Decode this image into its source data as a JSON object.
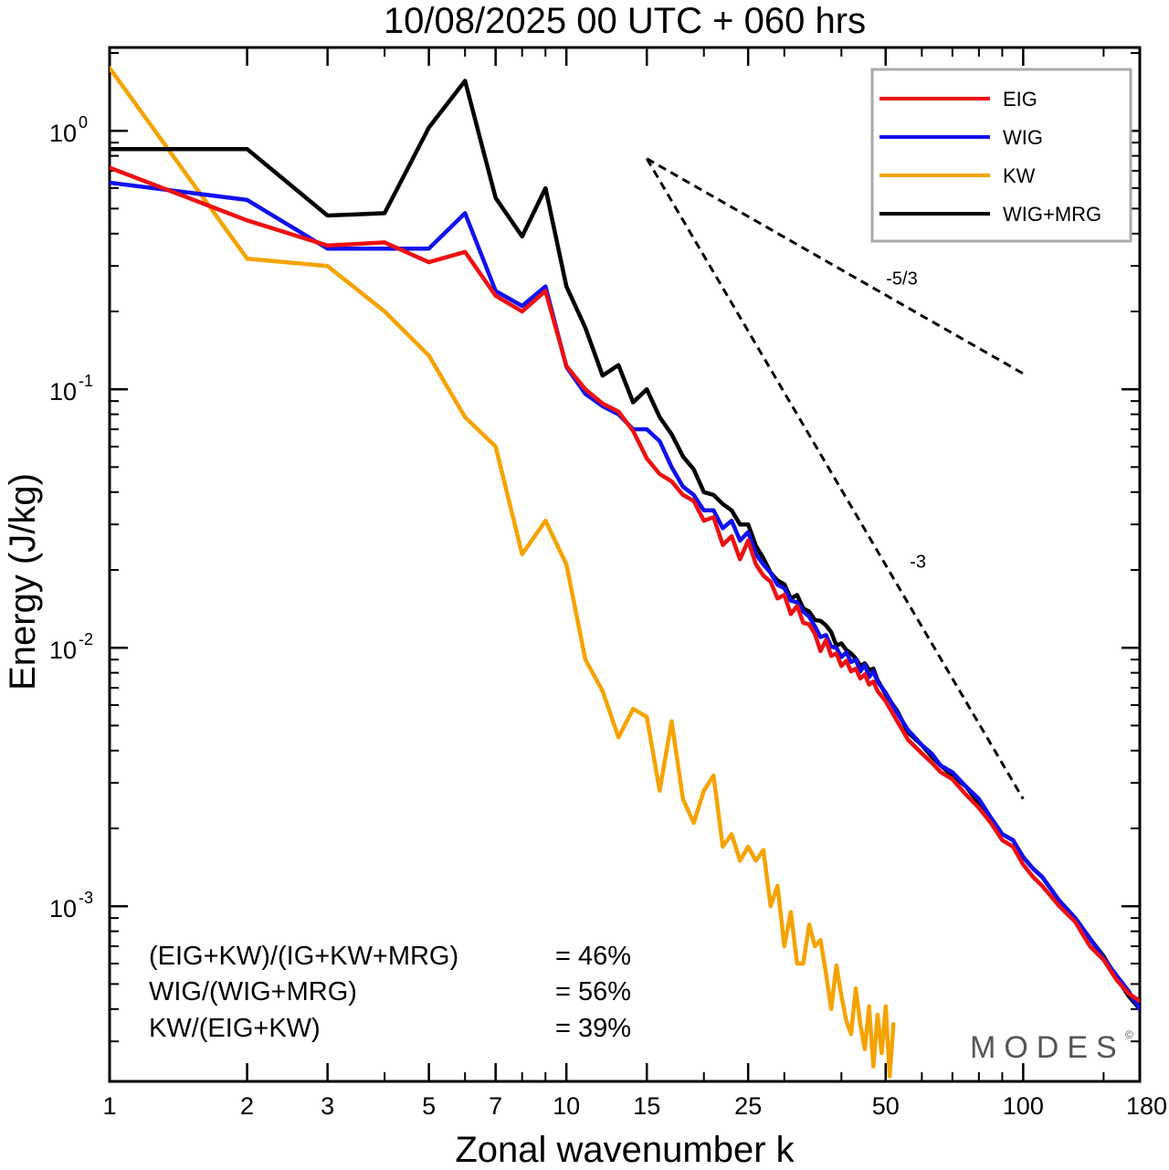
{
  "chart_data": {
    "type": "line",
    "title": "10/08/2025  00 UTC  + 060 hrs",
    "xlabel": "Zonal wavenumber k",
    "ylabel": "Energy (J/kg)",
    "xscale": "log",
    "yscale": "log",
    "xlim": [
      1,
      180
    ],
    "ylim": [
      0.00021,
      2.1
    ],
    "x_ticks": [
      {
        "value": 1,
        "label": "1"
      },
      {
        "value": 2,
        "label": "2"
      },
      {
        "value": 3,
        "label": "3"
      },
      {
        "value": 5,
        "label": "5"
      },
      {
        "value": 7,
        "label": "7"
      },
      {
        "value": 10,
        "label": "10"
      },
      {
        "value": 15,
        "label": "15"
      },
      {
        "value": 25,
        "label": "25"
      },
      {
        "value": 50,
        "label": "50"
      },
      {
        "value": 100,
        "label": "100"
      },
      {
        "value": 180,
        "label": "180"
      }
    ],
    "y_ticks": [
      {
        "value": 1,
        "base": "10",
        "exp": "0"
      },
      {
        "value": 0.1,
        "base": "10",
        "exp": "-1"
      },
      {
        "value": 0.01,
        "base": "10",
        "exp": "-2"
      },
      {
        "value": 0.001,
        "base": "10",
        "exp": "-3"
      }
    ],
    "legend_position": "top-right",
    "series": [
      {
        "name": "EIG",
        "color": "#ee1111",
        "x": [
          1,
          2,
          3,
          4,
          5,
          6,
          7,
          8,
          9,
          10,
          11,
          12,
          13,
          14,
          15,
          16,
          17,
          18,
          19,
          20,
          21,
          22,
          23,
          24,
          25,
          26,
          27,
          28,
          29,
          30,
          31,
          32,
          33,
          34,
          35,
          36,
          37,
          38,
          39,
          40,
          41,
          42,
          43,
          44,
          45,
          46,
          47,
          48,
          50,
          53,
          56,
          60,
          63,
          66,
          70,
          75,
          80,
          85,
          90,
          95,
          100,
          105,
          110,
          120,
          130,
          140,
          150,
          160,
          170,
          180
        ],
        "y": [
          0.72,
          0.45,
          0.36,
          0.37,
          0.31,
          0.34,
          0.23,
          0.2,
          0.24,
          0.123,
          0.1,
          0.088,
          0.082,
          0.069,
          0.054,
          0.047,
          0.044,
          0.039,
          0.037,
          0.031,
          0.032,
          0.025,
          0.027,
          0.022,
          0.026,
          0.021,
          0.019,
          0.018,
          0.0155,
          0.016,
          0.0135,
          0.0145,
          0.0125,
          0.0123,
          0.0113,
          0.0097,
          0.0107,
          0.0093,
          0.0095,
          0.0085,
          0.0089,
          0.0081,
          0.0083,
          0.0076,
          0.0079,
          0.0072,
          0.0074,
          0.0068,
          0.0062,
          0.0052,
          0.0044,
          0.0039,
          0.0036,
          0.0033,
          0.0031,
          0.0027,
          0.0024,
          0.0021,
          0.0018,
          0.0017,
          0.00145,
          0.0013,
          0.0012,
          0.001,
          0.00087,
          0.0007,
          0.00062,
          0.00052,
          0.00046,
          0.00043
        ]
      },
      {
        "name": "WIG",
        "color": "#1111ee",
        "x": [
          1,
          2,
          3,
          4,
          5,
          6,
          7,
          8,
          9,
          10,
          11,
          12,
          13,
          14,
          15,
          16,
          17,
          18,
          19,
          20,
          21,
          22,
          23,
          24,
          25,
          26,
          27,
          28,
          29,
          30,
          31,
          32,
          33,
          34,
          35,
          36,
          37,
          38,
          39,
          40,
          41,
          42,
          43,
          44,
          45,
          46,
          47,
          48,
          50,
          53,
          56,
          60,
          63,
          66,
          70,
          75,
          80,
          85,
          90,
          95,
          100,
          105,
          110,
          120,
          130,
          140,
          150,
          160,
          170,
          180
        ],
        "y": [
          0.63,
          0.54,
          0.35,
          0.35,
          0.35,
          0.48,
          0.24,
          0.21,
          0.25,
          0.122,
          0.096,
          0.086,
          0.08,
          0.07,
          0.07,
          0.063,
          0.05,
          0.042,
          0.039,
          0.034,
          0.034,
          0.029,
          0.031,
          0.026,
          0.028,
          0.023,
          0.021,
          0.0195,
          0.0175,
          0.017,
          0.0152,
          0.015,
          0.0138,
          0.0132,
          0.0121,
          0.011,
          0.0112,
          0.0101,
          0.01,
          0.0092,
          0.0096,
          0.0088,
          0.009,
          0.0081,
          0.0086,
          0.0077,
          0.0081,
          0.0074,
          0.0067,
          0.0056,
          0.0048,
          0.0042,
          0.0039,
          0.0035,
          0.0033,
          0.0029,
          0.0026,
          0.0022,
          0.0019,
          0.0018,
          0.00155,
          0.0014,
          0.0013,
          0.00105,
          0.0009,
          0.00075,
          0.00063,
          0.00054,
          0.00047,
          0.0004
        ]
      },
      {
        "name": "KW",
        "color": "#f5a300",
        "x": [
          1,
          2,
          3,
          4,
          5,
          6,
          7,
          8,
          9,
          10,
          11,
          12,
          13,
          14,
          15,
          16,
          17,
          18,
          19,
          20,
          21,
          22,
          23,
          24,
          25,
          26,
          27,
          28,
          29,
          30,
          31,
          32,
          33,
          34,
          35,
          36,
          37,
          38,
          39,
          40,
          41,
          42,
          43,
          44,
          45,
          46,
          47,
          48,
          49,
          50,
          51,
          52
        ],
        "y": [
          1.75,
          0.32,
          0.3,
          0.2,
          0.135,
          0.078,
          0.06,
          0.023,
          0.031,
          0.021,
          0.009,
          0.0068,
          0.0045,
          0.0058,
          0.0054,
          0.0028,
          0.0052,
          0.0026,
          0.0021,
          0.0028,
          0.0032,
          0.0017,
          0.0019,
          0.0015,
          0.0017,
          0.0015,
          0.00165,
          0.001,
          0.0012,
          0.0007,
          0.00095,
          0.0006,
          0.0006,
          0.00085,
          0.0007,
          0.00074,
          0.00055,
          0.0004,
          0.00059,
          0.00045,
          0.00036,
          0.00032,
          0.00048,
          0.00035,
          0.00028,
          0.00041,
          0.00024,
          0.00038,
          0.00027,
          0.00041,
          0.00022,
          0.00035
        ]
      },
      {
        "name": "WIG+MRG",
        "color": "#000000",
        "x": [
          1,
          2,
          3,
          4,
          5,
          6,
          7,
          8,
          9,
          10,
          11,
          12,
          13,
          14,
          15,
          16,
          17,
          18,
          19,
          20,
          21,
          22,
          23,
          24,
          25,
          26,
          27,
          28,
          29,
          30,
          31,
          32,
          33,
          34,
          35,
          36,
          37,
          38,
          39,
          40,
          41,
          42,
          43,
          44,
          45,
          46,
          47,
          48,
          50,
          53,
          56,
          60,
          63,
          66,
          70,
          75,
          80,
          85,
          90,
          95,
          100,
          105,
          110,
          120,
          130,
          140,
          150,
          160,
          170,
          180
        ],
        "y": [
          0.85,
          0.85,
          0.47,
          0.48,
          1.03,
          1.56,
          0.55,
          0.39,
          0.6,
          0.25,
          0.173,
          0.113,
          0.124,
          0.089,
          0.1,
          0.078,
          0.067,
          0.055,
          0.049,
          0.04,
          0.039,
          0.036,
          0.034,
          0.03,
          0.03,
          0.0248,
          0.0222,
          0.0195,
          0.0182,
          0.0176,
          0.0155,
          0.016,
          0.0142,
          0.0138,
          0.0128,
          0.0127,
          0.0122,
          0.0115,
          0.0102,
          0.0104,
          0.0098,
          0.0095,
          0.0091,
          0.0085,
          0.0087,
          0.0082,
          0.0083,
          0.0075,
          0.0066,
          0.0057,
          0.0047,
          0.0042,
          0.0038,
          0.0035,
          0.0032,
          0.0029,
          0.0025,
          0.0022,
          0.0019,
          0.0018,
          0.00155,
          0.0014,
          0.0013,
          0.00105,
          0.0009,
          0.00075,
          0.00064,
          0.00053,
          0.00045,
          0.0004
        ]
      }
    ],
    "reference_lines": [
      {
        "name": "slope -5/3",
        "label": "-5/3",
        "x": [
          15,
          100
        ],
        "y": [
          0.78,
          0.115
        ]
      },
      {
        "name": "slope -3",
        "label": "-3",
        "x": [
          15,
          100
        ],
        "y": [
          0.78,
          0.0026
        ]
      }
    ],
    "annotations": [
      {
        "label": "(EIG+KW)/(IG+KW+MRG)",
        "value": "= 46%"
      },
      {
        "label": "WIG/(WIG+MRG)",
        "value": "= 56%"
      },
      {
        "label": "KW/(EIG+KW)",
        "value": "= 39%"
      }
    ],
    "branding": "MODES",
    "branding_mark": "©"
  }
}
